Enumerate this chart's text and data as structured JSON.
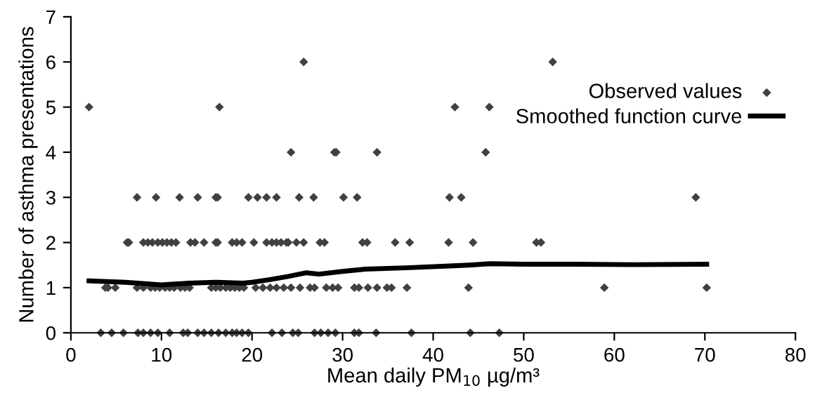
{
  "chart_data": {
    "type": "scatter",
    "xlabel": "Mean daily PM$_{10}$ µg/m³",
    "ylabel": "Number of asthma presentations",
    "xlim": [
      0,
      80
    ],
    "xticks": [
      0,
      10,
      20,
      30,
      40,
      50,
      60,
      70,
      80
    ],
    "ylim": [
      0,
      7
    ],
    "yticks": [
      0,
      1,
      2,
      3,
      4,
      5,
      6,
      7
    ],
    "grid": false,
    "legend": "right",
    "series": [
      {
        "name": "Observed values",
        "marker": "diamond",
        "color": "#404040",
        "x": [
          2.0,
          16.4,
          42.4,
          46.2,
          25.7,
          53.2,
          24.3,
          29.1,
          29.3,
          33.8,
          45.8,
          7.3,
          9.4,
          12.0,
          14.0,
          16.0,
          16.2,
          19.6,
          20.6,
          21.6,
          22.7,
          25.2,
          26.8,
          30.1,
          31.6,
          41.8,
          43.1,
          69.0,
          6.2,
          6.4,
          8.0,
          8.5,
          9.0,
          9.6,
          10.1,
          10.6,
          11.1,
          11.6,
          13.2,
          13.7,
          14.7,
          16.0,
          16.2,
          17.8,
          18.3,
          18.9,
          20.2,
          21.6,
          22.2,
          22.7,
          23.2,
          23.8,
          24.0,
          24.9,
          25.7,
          27.5,
          28.0,
          32.2,
          32.7,
          35.8,
          37.4,
          41.7,
          44.4,
          51.4,
          51.9,
          3.8,
          4.1,
          4.9,
          7.3,
          8.0,
          8.8,
          9.3,
          9.8,
          10.4,
          10.9,
          11.4,
          12.1,
          12.6,
          13.1,
          15.5,
          16.0,
          16.5,
          17.1,
          17.6,
          18.1,
          18.6,
          19.1,
          20.4,
          21.2,
          22.0,
          22.7,
          23.5,
          24.3,
          25.3,
          26.4,
          26.9,
          28.2,
          28.9,
          29.5,
          31.3,
          31.8,
          32.8,
          33.8,
          34.9,
          35.4,
          37.1,
          43.9,
          58.9,
          70.2,
          3.3,
          4.5,
          5.8,
          7.4,
          8.0,
          8.8,
          9.6,
          10.9,
          12.4,
          12.9,
          14.0,
          14.7,
          15.5,
          16.3,
          17.1,
          17.8,
          18.3,
          18.9,
          19.6,
          22.2,
          23.3,
          24.5,
          25.1,
          26.9,
          27.6,
          28.4,
          29.2,
          31.3,
          31.8,
          33.7,
          37.6,
          44.1,
          47.3
        ],
        "values": [
          5,
          5,
          5,
          5,
          6,
          6,
          4,
          4,
          4,
          4,
          4,
          3,
          3,
          3,
          3,
          3,
          3,
          3,
          3,
          3,
          3,
          3,
          3,
          3,
          3,
          3,
          3,
          3,
          2,
          2,
          2,
          2,
          2,
          2,
          2,
          2,
          2,
          2,
          2,
          2,
          2,
          2,
          2,
          2,
          2,
          2,
          2,
          2,
          2,
          2,
          2,
          2,
          2,
          2,
          2,
          2,
          2,
          2,
          2,
          2,
          2,
          2,
          2,
          2,
          2,
          1,
          1,
          1,
          1,
          1,
          1,
          1,
          1,
          1,
          1,
          1,
          1,
          1,
          1,
          1,
          1,
          1,
          1,
          1,
          1,
          1,
          1,
          1,
          1,
          1,
          1,
          1,
          1,
          1,
          1,
          1,
          1,
          1,
          1,
          1,
          1,
          1,
          1,
          1,
          1,
          1,
          1,
          1,
          1,
          0,
          0,
          0,
          0,
          0,
          0,
          0,
          0,
          0,
          0,
          0,
          0,
          0,
          0,
          0,
          0,
          0,
          0,
          0,
          0,
          0,
          0,
          0,
          0,
          0,
          0,
          0,
          0,
          0,
          0,
          0,
          0,
          0
        ]
      },
      {
        "name": "Smoothed function curve",
        "type": "line",
        "color": "#000000",
        "line_style": "solid",
        "x": [
          2,
          6,
          10,
          13,
          16,
          19,
          20,
          22,
          24,
          26,
          27.4,
          30,
          32.5,
          37,
          41.8,
          44,
          46.3,
          50,
          55.6,
          62,
          70.2
        ],
        "values": [
          1.15,
          1.12,
          1.06,
          1.1,
          1.12,
          1.1,
          1.12,
          1.18,
          1.25,
          1.33,
          1.3,
          1.36,
          1.41,
          1.44,
          1.48,
          1.5,
          1.53,
          1.52,
          1.52,
          1.51,
          1.52
        ]
      }
    ]
  }
}
